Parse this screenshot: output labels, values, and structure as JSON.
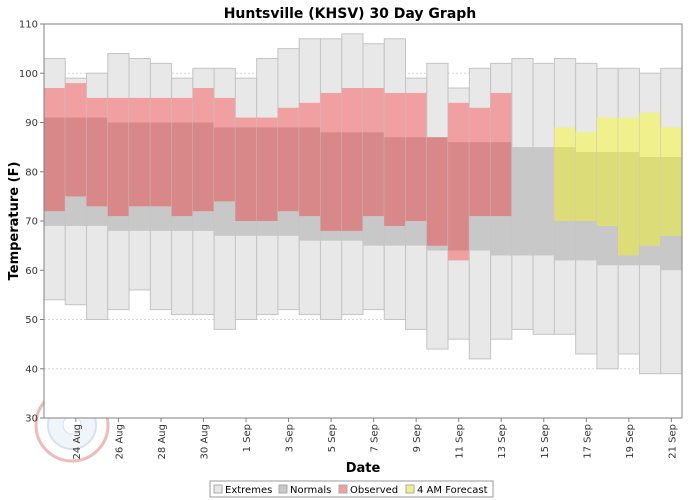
{
  "chart_data": {
    "type": "bar",
    "title": "Huntsville (KHSV) 30 Day Graph",
    "xlabel": "Date",
    "ylabel": "Temperature (F)",
    "ylim": [
      30,
      110
    ],
    "yticks": [
      30,
      40,
      50,
      60,
      70,
      80,
      90,
      100,
      110
    ],
    "grid": true,
    "legend_placement": "bottom",
    "colors": {
      "extremes": "#e8e8e8",
      "normals": "#c8c8c8",
      "observed": "#f0a0a0",
      "observed_overlap": "#d88888",
      "forecast": "#f0f08c",
      "forecast_overlap": "#dcdc78"
    },
    "legend": [
      "Extremes",
      "Normals",
      "Observed",
      "4 AM Forecast"
    ],
    "x_tick_labels": [
      "24 Aug",
      "26 Aug",
      "28 Aug",
      "30 Aug",
      "1 Sep",
      "3 Sep",
      "5 Sep",
      "7 Sep",
      "9 Sep",
      "11 Sep",
      "13 Sep",
      "15 Sep",
      "17 Sep",
      "19 Sep",
      "21 Sep"
    ],
    "days": [
      {
        "date": "23 Aug",
        "ext_low": 54,
        "ext_high": 103,
        "norm_low": 69,
        "norm_high": 91,
        "obs_low": 72,
        "obs_high": 97
      },
      {
        "date": "24 Aug",
        "ext_low": 53,
        "ext_high": 99,
        "norm_low": 69,
        "norm_high": 91,
        "obs_low": 75,
        "obs_high": 98
      },
      {
        "date": "25 Aug",
        "ext_low": 50,
        "ext_high": 100,
        "norm_low": 69,
        "norm_high": 91,
        "obs_low": 73,
        "obs_high": 95
      },
      {
        "date": "26 Aug",
        "ext_low": 52,
        "ext_high": 104,
        "norm_low": 68,
        "norm_high": 90,
        "obs_low": 71,
        "obs_high": 95
      },
      {
        "date": "27 Aug",
        "ext_low": 56,
        "ext_high": 103,
        "norm_low": 68,
        "norm_high": 90,
        "obs_low": 73,
        "obs_high": 95
      },
      {
        "date": "28 Aug",
        "ext_low": 52,
        "ext_high": 102,
        "norm_low": 68,
        "norm_high": 90,
        "obs_low": 73,
        "obs_high": 95
      },
      {
        "date": "29 Aug",
        "ext_low": 51,
        "ext_high": 99,
        "norm_low": 68,
        "norm_high": 90,
        "obs_low": 71,
        "obs_high": 95
      },
      {
        "date": "30 Aug",
        "ext_low": 51,
        "ext_high": 101,
        "norm_low": 68,
        "norm_high": 90,
        "obs_low": 72,
        "obs_high": 97
      },
      {
        "date": "31 Aug",
        "ext_low": 48,
        "ext_high": 101,
        "norm_low": 67,
        "norm_high": 89,
        "obs_low": 74,
        "obs_high": 95
      },
      {
        "date": "1 Sep",
        "ext_low": 50,
        "ext_high": 99,
        "norm_low": 67,
        "norm_high": 89,
        "obs_low": 70,
        "obs_high": 91
      },
      {
        "date": "2 Sep",
        "ext_low": 51,
        "ext_high": 103,
        "norm_low": 67,
        "norm_high": 89,
        "obs_low": 70,
        "obs_high": 91
      },
      {
        "date": "3 Sep",
        "ext_low": 52,
        "ext_high": 105,
        "norm_low": 67,
        "norm_high": 89,
        "obs_low": 72,
        "obs_high": 93
      },
      {
        "date": "4 Sep",
        "ext_low": 51,
        "ext_high": 107,
        "norm_low": 66,
        "norm_high": 89,
        "obs_low": 71,
        "obs_high": 94
      },
      {
        "date": "5 Sep",
        "ext_low": 50,
        "ext_high": 107,
        "norm_low": 66,
        "norm_high": 88,
        "obs_low": 68,
        "obs_high": 96
      },
      {
        "date": "6 Sep",
        "ext_low": 51,
        "ext_high": 108,
        "norm_low": 66,
        "norm_high": 88,
        "obs_low": 68,
        "obs_high": 97
      },
      {
        "date": "7 Sep",
        "ext_low": 52,
        "ext_high": 106,
        "norm_low": 65,
        "norm_high": 88,
        "obs_low": 71,
        "obs_high": 97
      },
      {
        "date": "8 Sep",
        "ext_low": 50,
        "ext_high": 107,
        "norm_low": 65,
        "norm_high": 87,
        "obs_low": 69,
        "obs_high": 96
      },
      {
        "date": "9 Sep",
        "ext_low": 48,
        "ext_high": 99,
        "norm_low": 65,
        "norm_high": 87,
        "obs_low": 70,
        "obs_high": 96
      },
      {
        "date": "10 Sep",
        "ext_low": 44,
        "ext_high": 102,
        "norm_low": 64,
        "norm_high": 87,
        "obs_low": 65,
        "obs_high": 87
      },
      {
        "date": "11 Sep",
        "ext_low": 46,
        "ext_high": 97,
        "norm_low": 64,
        "norm_high": 86,
        "obs_low": 62,
        "obs_high": 94
      },
      {
        "date": "12 Sep",
        "ext_low": 42,
        "ext_high": 101,
        "norm_low": 64,
        "norm_high": 86,
        "obs_low": 71,
        "obs_high": 93
      },
      {
        "date": "13 Sep",
        "ext_low": 46,
        "ext_high": 102,
        "norm_low": 63,
        "norm_high": 86,
        "obs_low": 71,
        "obs_high": 96
      },
      {
        "date": "14 Sep",
        "ext_low": 48,
        "ext_high": 103,
        "norm_low": 63,
        "norm_high": 85
      },
      {
        "date": "15 Sep",
        "ext_low": 47,
        "ext_high": 102,
        "norm_low": 63,
        "norm_high": 85
      },
      {
        "date": "16 Sep",
        "ext_low": 47,
        "ext_high": 103,
        "norm_low": 62,
        "norm_high": 85,
        "fc_low": 70,
        "fc_high": 89
      },
      {
        "date": "17 Sep",
        "ext_low": 43,
        "ext_high": 102,
        "norm_low": 62,
        "norm_high": 84,
        "fc_low": 70,
        "fc_high": 88
      },
      {
        "date": "18 Sep",
        "ext_low": 40,
        "ext_high": 101,
        "norm_low": 61,
        "norm_high": 84,
        "fc_low": 69,
        "fc_high": 91
      },
      {
        "date": "19 Sep",
        "ext_low": 43,
        "ext_high": 101,
        "norm_low": 61,
        "norm_high": 84,
        "fc_low": 63,
        "fc_high": 91
      },
      {
        "date": "20 Sep",
        "ext_low": 39,
        "ext_high": 100,
        "norm_low": 61,
        "norm_high": 83,
        "fc_low": 65,
        "fc_high": 92
      },
      {
        "date": "21 Sep",
        "ext_low": 39,
        "ext_high": 101,
        "norm_low": 60,
        "norm_high": 83,
        "fc_low": 67,
        "fc_high": 89
      }
    ]
  }
}
